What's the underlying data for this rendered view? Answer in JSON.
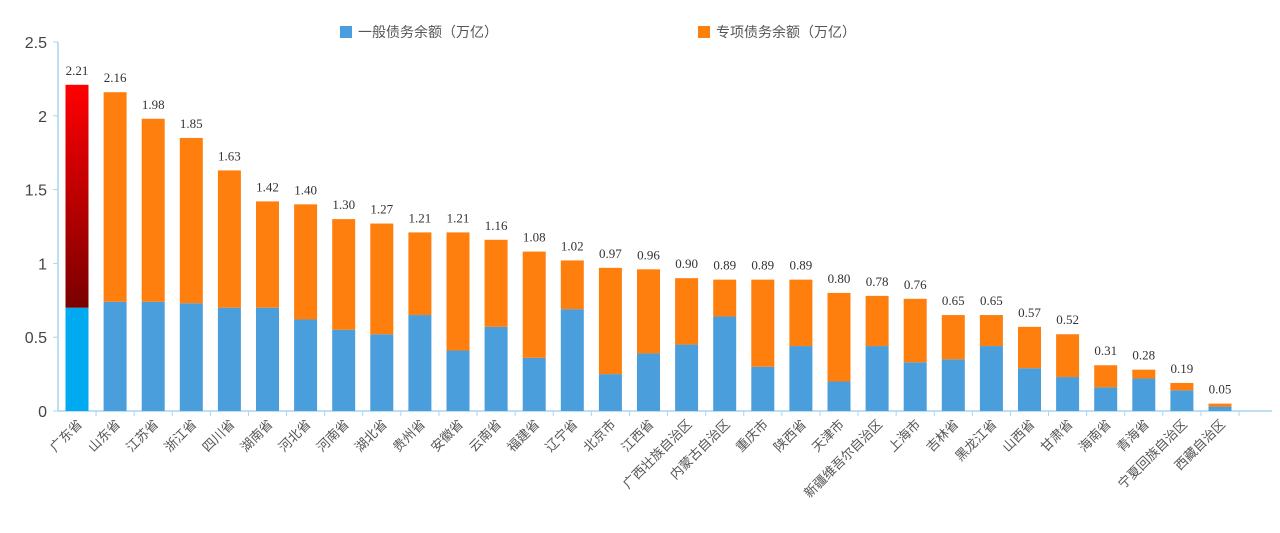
{
  "legend": {
    "general_label": "一般债务余额（万亿）",
    "special_label": "专项债务余额（万亿）"
  },
  "colors": {
    "general": "#4a9edc",
    "special": "#ff7f0e",
    "highlight_general": "#00aaf0",
    "highlight_special_top": "#ff0000",
    "highlight_special_bottom": "#7a0000",
    "axis": "#aad4f0"
  },
  "chart_data": {
    "type": "bar",
    "stacked": true,
    "ylim": [
      0,
      2.5
    ],
    "yticks": [
      "0",
      "0.5",
      "1",
      "1.5",
      "2",
      "2.5"
    ],
    "categories": [
      "广东省",
      "山东省",
      "江苏省",
      "浙江省",
      "四川省",
      "湖南省",
      "河北省",
      "河南省",
      "湖北省",
      "贵州省",
      "安徽省",
      "云南省",
      "福建省",
      "辽宁省",
      "北京市",
      "江西省",
      "广西壮族自治区",
      "内蒙古自治区",
      "重庆市",
      "陕西省",
      "天津市",
      "新疆维吾尔自治区",
      "上海市",
      "吉林省",
      "黑龙江省",
      "山西省",
      "甘肃省",
      "海南省",
      "青海省",
      "宁夏回族自治区",
      "西藏自治区"
    ],
    "totals_labels": [
      "2.21",
      "2.16",
      "1.98",
      "1.85",
      "1.63",
      "1.42",
      "1.40",
      "1.30",
      "1.27",
      "1.21",
      "1.21",
      "1.16",
      "1.08",
      "1.02",
      "0.97",
      "0.96",
      "0.90",
      "0.89",
      "0.89",
      "0.89",
      "0.80",
      "0.78",
      "0.76",
      "0.65",
      "0.65",
      "0.57",
      "0.52",
      "0.31",
      "0.28",
      "0.19",
      "0.05"
    ],
    "series": [
      {
        "name": "一般债务余额（万亿）",
        "values": [
          0.7,
          0.74,
          0.74,
          0.73,
          0.7,
          0.7,
          0.62,
          0.55,
          0.52,
          0.65,
          0.41,
          0.57,
          0.36,
          0.69,
          0.25,
          0.39,
          0.45,
          0.64,
          0.3,
          0.44,
          0.2,
          0.44,
          0.33,
          0.35,
          0.44,
          0.29,
          0.23,
          0.16,
          0.22,
          0.14,
          0.03
        ]
      },
      {
        "name": "专项债务余额（万亿）",
        "values": [
          1.51,
          1.42,
          1.24,
          1.12,
          0.93,
          0.72,
          0.78,
          0.75,
          0.75,
          0.56,
          0.8,
          0.59,
          0.72,
          0.33,
          0.72,
          0.57,
          0.45,
          0.25,
          0.59,
          0.45,
          0.6,
          0.34,
          0.43,
          0.3,
          0.21,
          0.28,
          0.29,
          0.15,
          0.06,
          0.05,
          0.02
        ]
      }
    ],
    "legend_position": "top",
    "grid": false,
    "highlight_first": true
  }
}
